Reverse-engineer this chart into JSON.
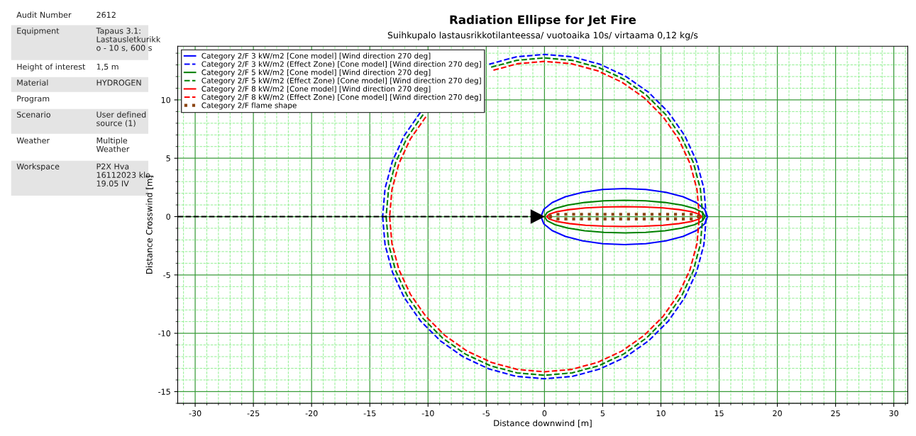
{
  "chart_data": [
    {
      "type": "other",
      "y_categories": [
        "Audit Number",
        "Equipment",
        "Height of interest",
        "Material",
        "Program",
        "Scenario",
        "Weather",
        "Workspace"
      ],
      "cell_labels": [
        [
          "2612"
        ],
        [
          "Tapaus 3.1:\nLastausletkurikk\no - 10 s, 600 s"
        ],
        [
          "1,5 m"
        ],
        [
          "HYDROGEN"
        ],
        [
          null
        ],
        [
          "User defined\nsource (1)"
        ],
        [
          "Multiple\nWeather"
        ],
        [
          "P2X Hva\n16112023 klo.\n19.05 IV"
        ]
      ]
    },
    {
      "type": "line",
      "title": "Radiation Ellipse for Jet Fire",
      "subtitle": "Suihkupalo lastausrikkotilanteessa/ vuotoaika 10s/ virtaama 0,12 kg/s",
      "xlabel": "Distance downwind [m]",
      "ylabel": "Distance Crosswind [m]",
      "xlim": [
        -31.5,
        31.2
      ],
      "ylim": [
        -16,
        14.6
      ],
      "xticks": [
        {
          "value": -31,
          "label": null
        },
        -30,
        {
          "value": -29,
          "label": null
        },
        {
          "value": -28,
          "label": null
        },
        {
          "value": -27,
          "label": null
        },
        {
          "value": -26,
          "label": null
        },
        -25,
        {
          "value": -24,
          "label": null
        },
        {
          "value": -23,
          "label": null
        },
        {
          "value": -22,
          "label": null
        },
        {
          "value": -21,
          "label": null
        },
        -20,
        {
          "value": -19,
          "label": null
        },
        {
          "value": -18,
          "label": null
        },
        {
          "value": -17,
          "label": null
        },
        {
          "value": -16,
          "label": null
        },
        -15,
        {
          "value": -14,
          "label": null
        },
        {
          "value": -13,
          "label": null
        },
        {
          "value": -12,
          "label": null
        },
        {
          "value": -11,
          "label": null
        },
        -10,
        {
          "value": -9,
          "label": null
        },
        {
          "value": -8,
          "label": null
        },
        {
          "value": -7,
          "label": null
        },
        {
          "value": -6,
          "label": null
        },
        -5,
        {
          "value": -4,
          "label": null
        },
        {
          "value": -3,
          "label": null
        },
        {
          "value": -2,
          "label": null
        },
        {
          "value": -1,
          "label": null
        },
        0,
        {
          "value": 1,
          "label": null
        },
        {
          "value": 2,
          "label": null
        },
        {
          "value": 3,
          "label": null
        },
        {
          "value": 4,
          "label": null
        },
        5,
        {
          "value": 6,
          "label": null
        },
        {
          "value": 7,
          "label": null
        },
        {
          "value": 8,
          "label": null
        },
        {
          "value": 9,
          "label": null
        },
        10,
        {
          "value": 11,
          "label": null
        },
        {
          "value": 12,
          "label": null
        },
        {
          "value": 13,
          "label": null
        },
        {
          "value": 14,
          "label": null
        },
        15,
        {
          "value": 16,
          "label": null
        },
        {
          "value": 17,
          "label": null
        },
        {
          "value": 18,
          "label": null
        },
        {
          "value": 19,
          "label": null
        },
        20,
        {
          "value": 21,
          "label": null
        },
        {
          "value": 22,
          "label": null
        },
        {
          "value": 23,
          "label": null
        },
        {
          "value": 24,
          "label": null
        },
        25,
        {
          "value": 26,
          "label": null
        },
        {
          "value": 27,
          "label": null
        },
        {
          "value": 28,
          "label": null
        },
        {
          "value": 29,
          "label": null
        },
        30,
        {
          "value": 31,
          "label": null
        }
      ],
      "yticks": [
        {
          "value": -16,
          "label": null
        },
        -15,
        {
          "value": -14,
          "label": null
        },
        {
          "value": -13,
          "label": null
        },
        {
          "value": -12,
          "label": null
        },
        {
          "value": -11,
          "label": null
        },
        -10,
        {
          "value": -9,
          "label": null
        },
        {
          "value": -8,
          "label": null
        },
        {
          "value": -7,
          "label": null
        },
        {
          "value": -6,
          "label": null
        },
        -5,
        {
          "value": -4,
          "label": null
        },
        {
          "value": -3,
          "label": null
        },
        {
          "value": -2,
          "label": null
        },
        {
          "value": -1,
          "label": null
        },
        0,
        {
          "value": 1,
          "label": null
        },
        {
          "value": 2,
          "label": null
        },
        {
          "value": 3,
          "label": null
        },
        {
          "value": 4,
          "label": null
        },
        5,
        {
          "value": 6,
          "label": null
        },
        {
          "value": 7,
          "label": null
        },
        {
          "value": 8,
          "label": null
        },
        {
          "value": 9,
          "label": null
        },
        10,
        {
          "value": 11,
          "label": null
        },
        {
          "value": 12,
          "label": null
        },
        {
          "value": 13,
          "label": null
        },
        {
          "value": 14,
          "label": null
        }
      ],
      "grid": true,
      "legend": "top left",
      "series": [
        {
          "name": "Category 2/F 3 kW/m2 [Cone model] [Wind direction 270 deg]",
          "color": "#0000ff",
          "line_style": "solid",
          "x": [
            14.0,
            13.76,
            13.04,
            11.9,
            10.43,
            8.7,
            6.85,
            5.0,
            3.28,
            1.8,
            0.66,
            -0.06,
            -0.3,
            null,
            -0.3,
            -0.06,
            0.66,
            1.8,
            3.28,
            5.0,
            6.85,
            8.7,
            10.43,
            11.9,
            13.04,
            13.76,
            14.0
          ],
          "values": [
            0,
            0.62,
            1.2,
            1.7,
            2.08,
            2.32,
            2.4,
            2.32,
            2.08,
            1.7,
            1.2,
            0.62,
            0,
            null,
            0,
            -0.62,
            -1.2,
            -1.7,
            -2.08,
            -2.32,
            -2.4,
            -2.32,
            -2.08,
            -1.7,
            -1.2,
            -0.62,
            0
          ]
        },
        {
          "name": "Category 2/F 3 kW/m2 (Effect Zone) [Cone model] [Wind direction 270 deg]",
          "color": "#0000ff",
          "line_style": "dashed",
          "x": [
            13.9,
            13.69,
            13.06,
            12.04,
            10.65,
            8.94,
            6.95,
            4.75,
            2.42,
            0,
            -2.42,
            -4.75,
            -6.95,
            -8.94,
            -10.65,
            -12.04,
            -13.06,
            -13.69,
            -13.9,
            null,
            -13.9,
            -13.69,
            -13.06,
            -12.04,
            -10.65,
            -8.94,
            -6.95,
            -4.75,
            -2.42,
            0,
            2.42,
            4.75,
            6.95,
            8.94,
            10.65,
            12.04,
            13.06,
            13.69,
            13.9
          ],
          "values": [
            0,
            2.42,
            4.75,
            6.95,
            8.94,
            10.65,
            12.04,
            13.06,
            13.69,
            13.9,
            13.69,
            13.06,
            null,
            null,
            8.94,
            6.95,
            4.75,
            2.42,
            0,
            null,
            0,
            -2.42,
            -4.75,
            -6.95,
            -8.94,
            -10.65,
            -12.04,
            -13.06,
            -13.69,
            -13.9,
            -13.69,
            -13.06,
            -12.04,
            -10.65,
            -8.94,
            -6.95,
            -4.75,
            -2.42,
            0
          ]
        },
        {
          "name": "Category 2/F 5 kW/m2 [Cone model] [Wind direction 270 deg]",
          "color": "#008000",
          "line_style": "solid",
          "x": [
            13.8,
            13.57,
            12.88,
            11.78,
            10.35,
            8.69,
            6.9,
            5.11,
            3.45,
            2.02,
            0.92,
            0.23,
            0,
            null,
            0,
            0.23,
            0.92,
            2.02,
            3.45,
            5.11,
            6.9,
            8.69,
            10.35,
            11.78,
            12.88,
            13.57,
            13.8
          ],
          "values": [
            0,
            0.36,
            0.7,
            0.99,
            1.21,
            1.35,
            1.4,
            1.35,
            1.21,
            0.99,
            0.7,
            0.36,
            0,
            null,
            0,
            -0.36,
            -0.7,
            -0.99,
            -1.21,
            -1.35,
            -1.4,
            -1.35,
            -1.21,
            -0.99,
            -0.7,
            -0.36,
            0
          ]
        },
        {
          "name": "Category 2/F 5 kW/m2 (Effect Zone) [Cone model] [Wind direction 270 deg]",
          "color": "#008000",
          "line_style": "dashed",
          "x": [
            13.6,
            13.39,
            12.78,
            11.78,
            10.42,
            8.74,
            6.8,
            4.65,
            2.37,
            0,
            -2.37,
            -4.65,
            -6.8,
            -8.74,
            -10.42,
            -11.78,
            -12.78,
            -13.39,
            -13.6,
            null,
            -13.6,
            -13.39,
            -12.78,
            -11.78,
            -10.42,
            -8.74,
            -6.8,
            -4.65,
            -2.37,
            0,
            2.37,
            4.65,
            6.8,
            8.74,
            10.42,
            11.78,
            12.78,
            13.39,
            13.6
          ],
          "values": [
            0,
            2.37,
            4.65,
            6.8,
            8.74,
            10.42,
            11.78,
            12.78,
            13.39,
            13.6,
            13.39,
            12.78,
            null,
            null,
            8.74,
            6.8,
            4.65,
            2.37,
            0,
            null,
            0,
            -2.37,
            -4.65,
            -6.8,
            -8.74,
            -10.42,
            -11.78,
            -12.78,
            -13.39,
            -13.6,
            -13.39,
            -12.78,
            -11.78,
            -10.42,
            -8.74,
            -6.8,
            -4.65,
            -2.37,
            0
          ]
        },
        {
          "name": "Category 2/F 8 kW/m2 [Cone model] [Wind direction 270 deg]",
          "color": "#ff0000",
          "line_style": "solid",
          "x": [
            13.5,
            13.27,
            12.61,
            11.55,
            10.18,
            8.57,
            6.85,
            5.13,
            3.53,
            2.15,
            1.09,
            0.43,
            0.2,
            null,
            0.2,
            0.43,
            1.09,
            2.15,
            3.53,
            5.13,
            6.85,
            8.57,
            10.18,
            11.55,
            12.61,
            13.27,
            13.5
          ],
          "values": [
            0,
            0.22,
            0.43,
            0.6,
            0.74,
            0.82,
            0.85,
            0.82,
            0.74,
            0.6,
            0.43,
            0.22,
            0,
            null,
            0,
            -0.22,
            -0.43,
            -0.6,
            -0.74,
            -0.82,
            -0.85,
            -0.82,
            -0.74,
            -0.6,
            -0.43,
            -0.22,
            0
          ]
        },
        {
          "name": "Category 2/F 8 kW/m2 (Effect Zone) [Cone model] [Wind direction 270 deg]",
          "color": "#ff0000",
          "line_style": "dashed",
          "x": [
            13.3,
            13.1,
            12.5,
            11.52,
            10.19,
            8.55,
            6.65,
            4.55,
            2.31,
            0,
            -2.31,
            -4.55,
            -6.65,
            -8.55,
            -10.19,
            -11.52,
            -12.5,
            -13.1,
            -13.3,
            null,
            -13.3,
            -13.1,
            -12.5,
            -11.52,
            -10.19,
            -8.55,
            -6.65,
            -4.55,
            -2.31,
            0,
            2.31,
            4.55,
            6.65,
            8.55,
            10.19,
            11.52,
            12.5,
            13.1,
            13.3
          ],
          "values": [
            0,
            2.31,
            4.55,
            6.65,
            8.55,
            10.19,
            11.52,
            12.5,
            13.1,
            13.3,
            13.1,
            12.5,
            null,
            null,
            8.55,
            6.65,
            4.55,
            2.31,
            0,
            null,
            0,
            -2.31,
            -4.55,
            -6.65,
            -8.55,
            -10.19,
            -11.52,
            -12.5,
            -13.1,
            -13.3,
            -13.1,
            -12.5,
            -11.52,
            -10.19,
            -8.55,
            -6.65,
            -4.55,
            -2.31,
            0
          ]
        },
        {
          "name": "Category 2/F flame shape",
          "color": "#8b4513",
          "line_style": "dotted",
          "x": [
            0.4,
            0.9,
            13.0,
            13.3,
            null,
            0.4,
            0.9,
            13.0,
            13.3
          ],
          "values": [
            0,
            0.2,
            0.2,
            0,
            null,
            0,
            -0.2,
            -0.2,
            0
          ]
        },
        {
          "color": "#000000",
          "line_style": "dashed",
          "marker": "triangle",
          "x": [
            -31.5,
            -0.6
          ],
          "values": [
            0,
            0
          ]
        }
      ]
    }
  ]
}
